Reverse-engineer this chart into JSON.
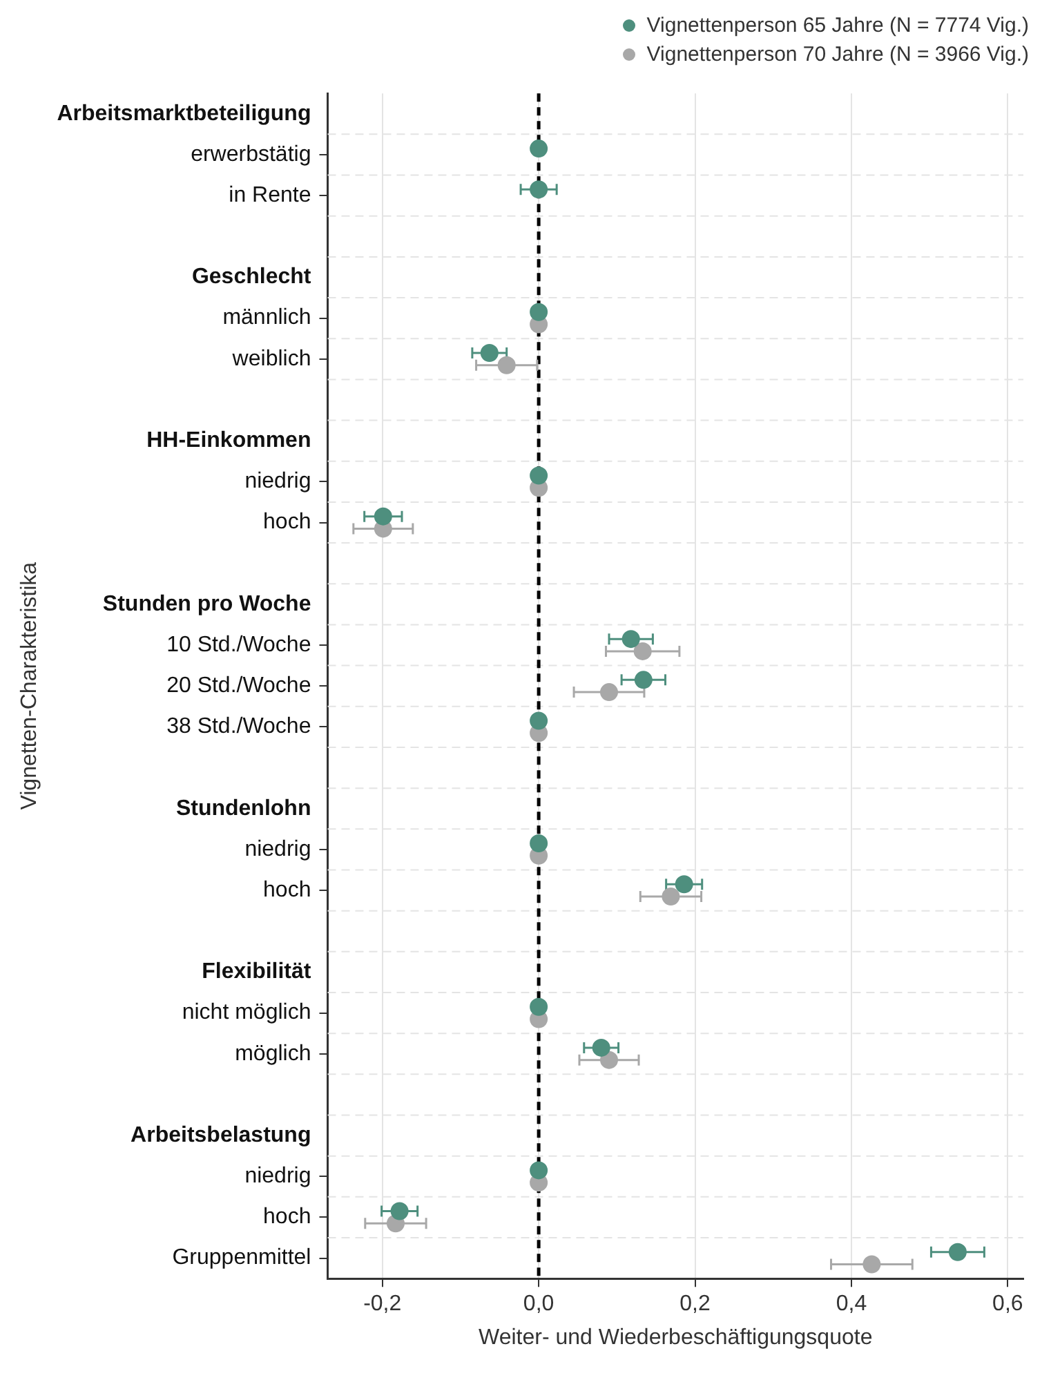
{
  "chart_data": {
    "type": "scatter",
    "orientation": "horizontal",
    "xlabel": "Weiter- und Wiederbeschäftigungsquote",
    "ylabel": "Vignetten-Charakteristika",
    "categories": [
      "Arbeitsmarktbeteiligung",
      "erwerbstätig",
      "in Rente",
      null,
      "Geschlecht",
      "männlich",
      "weiblich",
      null,
      "HH-Einkommen",
      "niedrig",
      "hoch",
      null,
      "Stunden pro Woche",
      "10 Std./Woche",
      "20 Std./Woche",
      "38 Std./Woche",
      null,
      "Stundenlohn",
      "niedrig",
      "hoch",
      null,
      "Flexibilität",
      "nicht möglich",
      "möglich",
      null,
      "Arbeitsbelastung",
      "niedrig",
      "hoch",
      "Gruppenmittel"
    ],
    "series": [
      {
        "name": "Vignettenperson 65 Jahre (N = 7774 Vig.)",
        "color": "#4e8f7e",
        "values": [
          null,
          0,
          0,
          null,
          null,
          0,
          -0.063,
          null,
          null,
          0,
          -0.199,
          null,
          null,
          0.118,
          0.134,
          0,
          null,
          null,
          0,
          0.186,
          null,
          null,
          0,
          0.08,
          null,
          null,
          0,
          -0.178,
          0.536
        ],
        "errors": [
          null,
          null,
          0.023,
          null,
          null,
          null,
          0.022,
          null,
          null,
          null,
          0.024,
          null,
          null,
          0.028,
          0.028,
          null,
          null,
          null,
          null,
          0.023,
          null,
          null,
          null,
          0.022,
          null,
          null,
          null,
          0.023,
          0.034
        ]
      },
      {
        "name": "Vignettenperson 70 Jahre (N = 3966 Vig.)",
        "color": "#a8a8a8",
        "values": [
          null,
          null,
          null,
          null,
          null,
          0,
          -0.041,
          null,
          null,
          0,
          -0.199,
          null,
          null,
          0.133,
          0.09,
          0,
          null,
          null,
          0,
          0.169,
          null,
          null,
          0,
          0.09,
          null,
          null,
          0,
          -0.183,
          0.426
        ],
        "errors": [
          null,
          null,
          null,
          null,
          null,
          null,
          0.039,
          null,
          null,
          null,
          0.038,
          null,
          null,
          0.047,
          0.045,
          null,
          null,
          null,
          null,
          0.039,
          null,
          null,
          null,
          0.038,
          null,
          null,
          null,
          0.039,
          0.052
        ]
      }
    ],
    "xlim": [
      -0.27,
      0.62
    ],
    "xticks": [
      {
        "value": -0.2,
        "label": "-0,2"
      },
      {
        "value": 0,
        "label": "0,0"
      },
      {
        "value": 0.2,
        "label": "0,2"
      },
      {
        "value": 0.4,
        "label": "0,4"
      },
      {
        "value": 0.6,
        "label": "0,6"
      }
    ],
    "ref_lines": [
      {
        "axis": "x",
        "value": 0,
        "color": "#000000",
        "line_style": "dashed"
      }
    ],
    "grid": true,
    "legend": "top right",
    "marker": "circle"
  }
}
